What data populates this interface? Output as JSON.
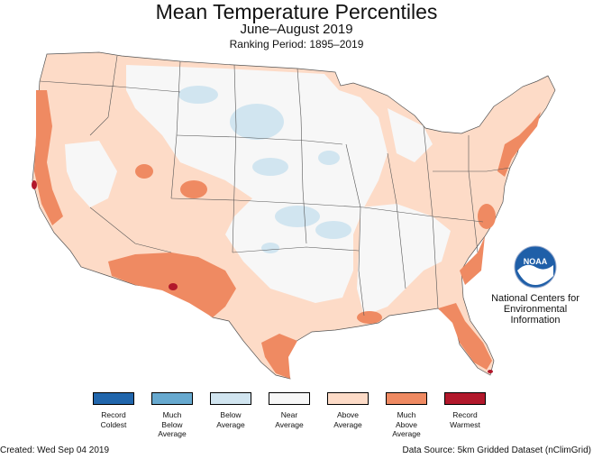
{
  "title": "Mean Temperature Percentiles",
  "subtitle": "June–August 2019",
  "ranking_period": "Ranking Period: 1895–2019",
  "org": {
    "logo_text": "NOAA",
    "line1": "National Centers for",
    "line2": "Environmental",
    "line3": "Information"
  },
  "legend": [
    {
      "line1": "Record",
      "line2": "Coldest",
      "line3": "",
      "color": "#2166ac"
    },
    {
      "line1": "Much",
      "line2": "Below",
      "line3": "Average",
      "color": "#67a9cf"
    },
    {
      "line1": "Below",
      "line2": "Average",
      "line3": "",
      "color": "#d1e5f0"
    },
    {
      "line1": "Near",
      "line2": "Average",
      "line3": "",
      "color": "#f7f7f7"
    },
    {
      "line1": "Above",
      "line2": "Average",
      "line3": "",
      "color": "#fddbc7"
    },
    {
      "line1": "Much",
      "line2": "Above",
      "line3": "Average",
      "color": "#ef8a62"
    },
    {
      "line1": "Record",
      "line2": "Warmest",
      "line3": "",
      "color": "#b2182b"
    }
  ],
  "footer": {
    "created": "Created: Wed Sep 04 2019",
    "source": "Data Source: 5km Gridded Dataset (nClimGrid)"
  }
}
